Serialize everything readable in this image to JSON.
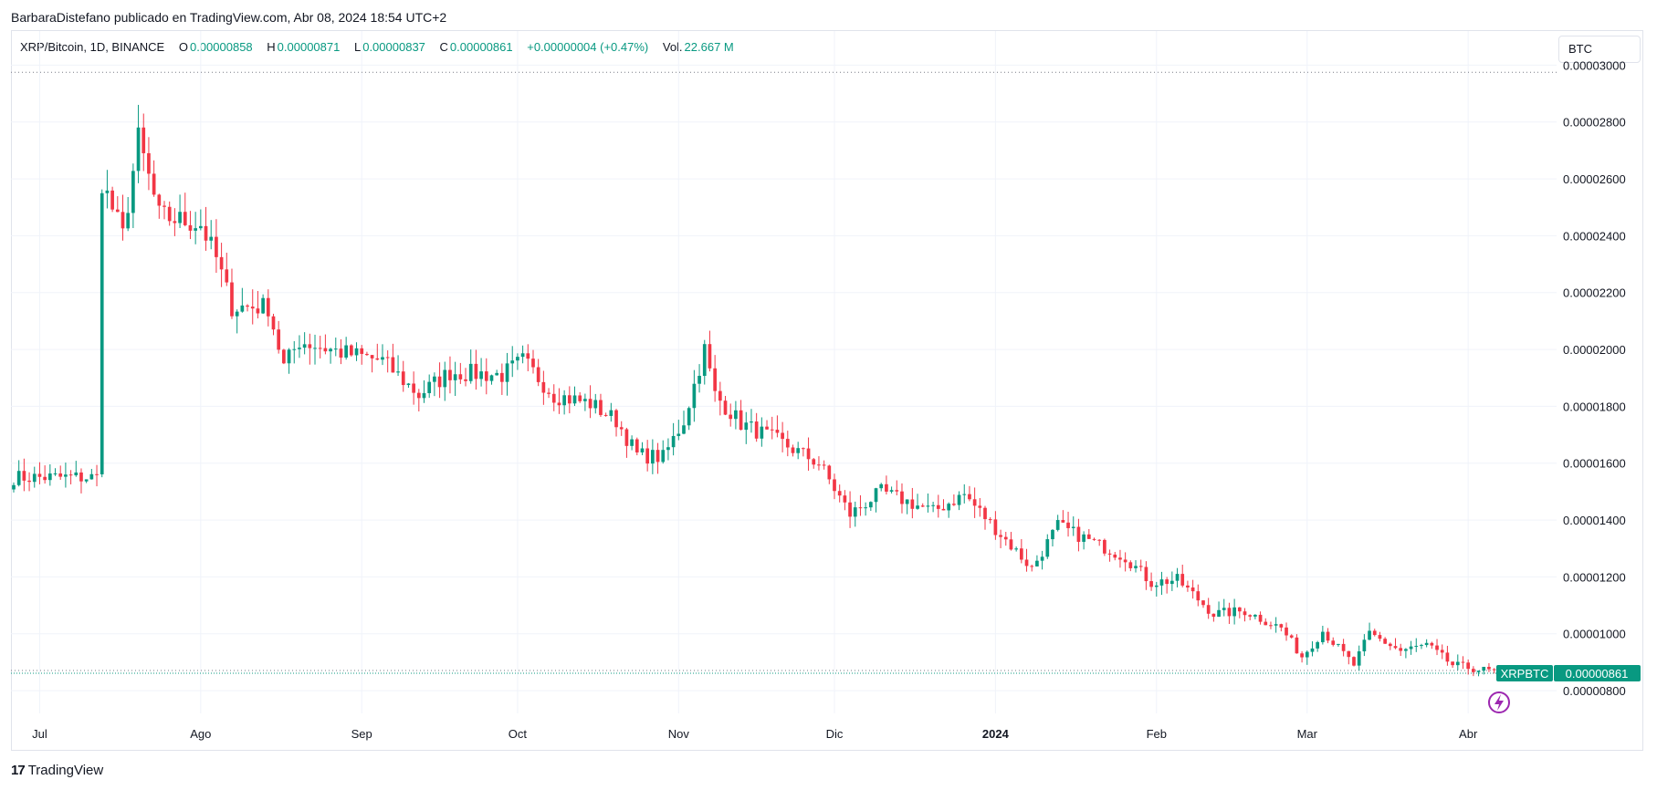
{
  "header": {
    "publisher_line": "BarbaraDistefano publicado en TradingView.com, Abr 08, 2024 18:54 UTC+2"
  },
  "legend": {
    "symbol": "XRP/Bitcoin, 1D, BINANCE",
    "o_label": "O",
    "o_value": "0.00000858",
    "h_label": "H",
    "h_value": "0.00000871",
    "l_label": "L",
    "l_value": "0.00000837",
    "c_label": "C",
    "c_value": "0.00000861",
    "change": "+0.00000004 (+0.47%)",
    "vol_label": "Vol.",
    "vol_value": "22.667 M"
  },
  "currency_button": "BTC",
  "price_tag": {
    "symbol": "XRPBTC",
    "price": "0.00000861"
  },
  "footer": {
    "logo_glyph": "17",
    "brand": "TradingView"
  },
  "colors": {
    "up": "#089981",
    "down": "#f23645",
    "grid": "#f0f3fa",
    "tag_bg": "#089981",
    "lightning": "#9c27b0"
  },
  "icons": {
    "lightning": "lightning-icon",
    "logo": "tradingview-logo-icon"
  },
  "chart_data": {
    "type": "candlestick",
    "title": "XRP/Bitcoin, 1D, BINANCE",
    "y_ticks": [
      "0.00000800",
      "0.00001000",
      "0.00001200",
      "0.00001400",
      "0.00001600",
      "0.00001800",
      "0.00002000",
      "0.00002200",
      "0.00002400",
      "0.00002600",
      "0.00002800",
      "0.00003000"
    ],
    "y_tick_values": [
      8e-06,
      1e-05,
      1.2e-05,
      1.4e-05,
      1.6e-05,
      1.8e-05,
      2e-05,
      2.2e-05,
      2.4e-05,
      2.6e-05,
      2.8e-05,
      3e-05
    ],
    "y_range": [
      7.2e-06,
      3.12e-05
    ],
    "x_labels": [
      {
        "label": "Jul",
        "date": "2023-07-01",
        "bold": false
      },
      {
        "label": "Ago",
        "date": "2023-08-01",
        "bold": false
      },
      {
        "label": "Sep",
        "date": "2023-09-01",
        "bold": false
      },
      {
        "label": "Oct",
        "date": "2023-10-01",
        "bold": false
      },
      {
        "label": "Nov",
        "date": "2023-11-01",
        "bold": false
      },
      {
        "label": "Dic",
        "date": "2023-12-01",
        "bold": false
      },
      {
        "label": "2024",
        "date": "2024-01-01",
        "bold": true
      },
      {
        "label": "Feb",
        "date": "2024-02-01",
        "bold": false
      },
      {
        "label": "Mar",
        "date": "2024-03-01",
        "bold": false
      },
      {
        "label": "Abr",
        "date": "2024-04-01",
        "bold": false
      }
    ],
    "x_range": [
      "2023-06-26",
      "2024-04-08"
    ],
    "all_time_high_line": 2.975e-05,
    "last_price": 8.61e-06,
    "closes": [
      {
        "date": "2023-06-26",
        "close": 1.55e-05
      },
      {
        "date": "2023-07-12",
        "close": 1.55e-05
      },
      {
        "date": "2023-07-13",
        "close": 2.59e-05
      },
      {
        "date": "2023-07-17",
        "close": 2.4e-05
      },
      {
        "date": "2023-07-20",
        "close": 2.74e-05
      },
      {
        "date": "2023-07-24",
        "close": 2.47e-05
      },
      {
        "date": "2023-08-01",
        "close": 2.44e-05
      },
      {
        "date": "2023-08-04",
        "close": 2.32e-05
      },
      {
        "date": "2023-08-07",
        "close": 2.15e-05
      },
      {
        "date": "2023-08-14",
        "close": 2.15e-05
      },
      {
        "date": "2023-08-17",
        "close": 1.94e-05
      },
      {
        "date": "2023-08-20",
        "close": 2.03e-05
      },
      {
        "date": "2023-08-28",
        "close": 1.99e-05
      },
      {
        "date": "2023-09-05",
        "close": 1.96e-05
      },
      {
        "date": "2023-09-12",
        "close": 1.84e-05
      },
      {
        "date": "2023-09-18",
        "close": 1.92e-05
      },
      {
        "date": "2023-09-28",
        "close": 1.91e-05
      },
      {
        "date": "2023-10-02",
        "close": 1.96e-05
      },
      {
        "date": "2023-10-08",
        "close": 1.84e-05
      },
      {
        "date": "2023-10-15",
        "close": 1.81e-05
      },
      {
        "date": "2023-10-20",
        "close": 1.75e-05
      },
      {
        "date": "2023-10-24",
        "close": 1.63e-05
      },
      {
        "date": "2023-10-29",
        "close": 1.62e-05
      },
      {
        "date": "2023-11-02",
        "close": 1.75e-05
      },
      {
        "date": "2023-11-06",
        "close": 2e-05
      },
      {
        "date": "2023-11-08",
        "close": 1.84e-05
      },
      {
        "date": "2023-11-13",
        "close": 1.74e-05
      },
      {
        "date": "2023-11-20",
        "close": 1.68e-05
      },
      {
        "date": "2023-11-28",
        "close": 1.6e-05
      },
      {
        "date": "2023-12-04",
        "close": 1.42e-05
      },
      {
        "date": "2023-12-10",
        "close": 1.5e-05
      },
      {
        "date": "2023-12-20",
        "close": 1.43e-05
      },
      {
        "date": "2023-12-26",
        "close": 1.49e-05
      },
      {
        "date": "2024-01-03",
        "close": 1.33e-05
      },
      {
        "date": "2024-01-08",
        "close": 1.23e-05
      },
      {
        "date": "2024-01-13",
        "close": 1.38e-05
      },
      {
        "date": "2024-01-20",
        "close": 1.32e-05
      },
      {
        "date": "2024-01-26",
        "close": 1.27e-05
      },
      {
        "date": "2024-01-31",
        "close": 1.18e-05
      },
      {
        "date": "2024-02-05",
        "close": 1.19e-05
      },
      {
        "date": "2024-02-12",
        "close": 1.07e-05
      },
      {
        "date": "2024-02-18",
        "close": 1.08e-05
      },
      {
        "date": "2024-02-25",
        "close": 1.02e-05
      },
      {
        "date": "2024-02-29",
        "close": 9.2e-06
      },
      {
        "date": "2024-03-04",
        "close": 1.01e-05
      },
      {
        "date": "2024-03-10",
        "close": 8.9e-06
      },
      {
        "date": "2024-03-13",
        "close": 1e-05
      },
      {
        "date": "2024-03-19",
        "close": 9.4e-06
      },
      {
        "date": "2024-03-24",
        "close": 9.6e-06
      },
      {
        "date": "2024-03-29",
        "close": 8.9e-06
      },
      {
        "date": "2024-04-08",
        "close": 8.6e-06
      }
    ]
  }
}
